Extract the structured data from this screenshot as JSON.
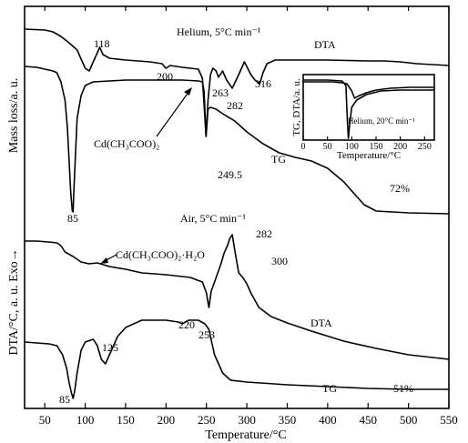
{
  "chart_data": {
    "type": "line",
    "xlabel": "Temperature/°C",
    "xlim": [
      25,
      550
    ],
    "xticks": [
      50,
      100,
      150,
      200,
      250,
      300,
      350,
      400,
      450,
      500,
      550
    ],
    "ylabel_top": "Mass loss/a. u.",
    "ylabel_bottom": "DTA/°C, a. u. Exo→",
    "panels": [
      {
        "title": "Helium, 5°C min⁻¹",
        "series": [
          {
            "name": "DTA",
            "points": [
              [
                25,
                32
              ],
              [
                50,
                33
              ],
              [
                60,
                35
              ],
              [
                70,
                40
              ],
              [
                80,
                47
              ],
              [
                90,
                55
              ],
              [
                95,
                65
              ],
              [
                100,
                75
              ],
              [
                105,
                78
              ],
              [
                110,
                68
              ],
              [
                115,
                58
              ],
              [
                118,
                52
              ],
              [
                122,
                60
              ],
              [
                130,
                64
              ],
              [
                150,
                66
              ],
              [
                180,
                68
              ],
              [
                195,
                70
              ],
              [
                200,
                75
              ],
              [
                205,
                72
              ],
              [
                220,
                74
              ],
              [
                240,
                76
              ],
              [
                245,
                86
              ],
              [
                249.5,
                150
              ],
              [
                252,
                110
              ],
              [
                255,
                82
              ],
              [
                258,
                75
              ],
              [
                262,
                78
              ],
              [
                265,
                85
              ],
              [
                270,
                78
              ],
              [
                275,
                88
              ],
              [
                282,
                97
              ],
              [
                290,
                82
              ],
              [
                297,
                68
              ],
              [
                305,
                82
              ],
              [
                310,
                88
              ],
              [
                316,
                92
              ],
              [
                320,
                80
              ],
              [
                325,
                70
              ],
              [
                335,
                66
              ],
              [
                360,
                66
              ],
              [
                400,
                66
              ],
              [
                450,
                67
              ],
              [
                470,
                67
              ],
              [
                490,
                68
              ],
              [
                510,
                70
              ],
              [
                550,
                72
              ]
            ]
          },
          {
            "name": "TG",
            "points": [
              [
                25,
                73
              ],
              [
                40,
                74
              ],
              [
                50,
                76
              ],
              [
                60,
                78
              ],
              [
                65,
                80
              ],
              [
                70,
                90
              ],
              [
                75,
                110
              ],
              [
                78,
                140
              ],
              [
                80,
                175
              ],
              [
                82,
                210
              ],
              [
                84,
                232
              ],
              [
                85,
                233
              ],
              [
                86,
                210
              ],
              [
                88,
                170
              ],
              [
                90,
                130
              ],
              [
                95,
                105
              ],
              [
                100,
                94
              ],
              [
                110,
                90
              ],
              [
                130,
                89
              ],
              [
                150,
                88
              ],
              [
                200,
                88
              ],
              [
                220,
                88
              ],
              [
                240,
                89
              ],
              [
                245,
                90
              ],
              [
                247,
                100
              ],
              [
                249.5,
                150
              ],
              [
                252,
                120
              ],
              [
                255,
                118
              ],
              [
                262,
                120
              ],
              [
                270,
                125
              ],
              [
                285,
                133
              ],
              [
                300,
                145
              ],
              [
                320,
                158
              ],
              [
                340,
                168
              ],
              [
                360,
                173
              ],
              [
                380,
                177
              ],
              [
                400,
                185
              ],
              [
                420,
                200
              ],
              [
                435,
                215
              ],
              [
                445,
                225
              ],
              [
                460,
                232
              ],
              [
                480,
                233
              ],
              [
                500,
                234
              ],
              [
                550,
                235
              ]
            ]
          }
        ],
        "annotations": [
          {
            "text": "118",
            "x": 118
          },
          {
            "text": "200",
            "x": 200
          },
          {
            "text": "263",
            "x": 263
          },
          {
            "text": "282",
            "x": 282
          },
          {
            "text": "316",
            "x": 316
          },
          {
            "text": "249.5",
            "x": 249.5
          },
          {
            "text": "85",
            "x": 85
          },
          {
            "text": "72%"
          },
          {
            "text": "Cd(CH₃COO)₂"
          }
        ],
        "inset": {
          "title": "Helium, 20°C min⁻¹",
          "xlabel": "Temperature/°C",
          "ylabel": "TG, DTA/a. u.",
          "xlim": [
            0,
            270
          ],
          "xticks": [
            0,
            50,
            100,
            150,
            200,
            250
          ],
          "series": [
            {
              "name": "TG",
              "points": [
                [
                  0,
                  6
                ],
                [
                  50,
                  6
                ],
                [
                  80,
                  7
                ],
                [
                  88,
                  12
                ],
                [
                  91,
                  50
                ],
                [
                  93,
                  70
                ],
                [
                  95,
                  58
                ],
                [
                  100,
                  36
                ],
                [
                  110,
                  28
                ],
                [
                  130,
                  22
                ],
                [
                  160,
                  18
                ],
                [
                  200,
                  17
                ],
                [
                  250,
                  17
                ],
                [
                  270,
                  17
                ]
              ]
            },
            {
              "name": "DTA",
              "points": [
                [
                  0,
                  8
                ],
                [
                  60,
                  8
                ],
                [
                  80,
                  9
                ],
                [
                  90,
                  10
                ],
                [
                  100,
                  18
                ],
                [
                  106,
                  26
                ],
                [
                  112,
                  24
                ],
                [
                  130,
                  20
                ],
                [
                  150,
                  17
                ],
                [
                  180,
                  15
                ],
                [
                  220,
                  14
                ],
                [
                  250,
                  14
                ],
                [
                  270,
                  14
                ]
              ]
            }
          ]
        }
      },
      {
        "title": "Air, 5°C min⁻¹",
        "series": [
          {
            "name": "DTA",
            "points": [
              [
                25,
                265
              ],
              [
                40,
                265
              ],
              [
                55,
                266
              ],
              [
                65,
                267
              ],
              [
                70,
                270
              ],
              [
                75,
                277
              ],
              [
                85,
                282
              ],
              [
                95,
                288
              ],
              [
                105,
                290
              ],
              [
                115,
                289
              ],
              [
                130,
                293
              ],
              [
                150,
                296
              ],
              [
                170,
                300
              ],
              [
                200,
                302
              ],
              [
                230,
                305
              ],
              [
                245,
                310
              ],
              [
                250,
                322
              ],
              [
                253,
                338
              ],
              [
                256,
                320
              ],
              [
                262,
                305
              ],
              [
                268,
                290
              ],
              [
                272,
                278
              ],
              [
                276,
                270
              ],
              [
                279,
                262
              ],
              [
                282,
                258
              ],
              [
                285,
                275
              ],
              [
                290,
                300
              ],
              [
                295,
                305
              ],
              [
                300,
                312
              ],
              [
                305,
                322
              ],
              [
                315,
                338
              ],
              [
                330,
                348
              ],
              [
                350,
                355
              ],
              [
                380,
                364
              ],
              [
                420,
                375
              ],
              [
                460,
                383
              ],
              [
                500,
                390
              ],
              [
                550,
                395
              ]
            ]
          },
          {
            "name": "TG",
            "points": [
              [
                25,
                376
              ],
              [
                40,
                377
              ],
              [
                55,
                378
              ],
              [
                65,
                380
              ],
              [
                72,
                390
              ],
              [
                77,
                405
              ],
              [
                80,
                420
              ],
              [
                83,
                432
              ],
              [
                85,
                438
              ],
              [
                87,
                430
              ],
              [
                90,
                410
              ],
              [
                95,
                385
              ],
              [
                100,
                376
              ],
              [
                110,
                373
              ],
              [
                115,
                380
              ],
              [
                120,
                395
              ],
              [
                125,
                400
              ],
              [
                130,
                390
              ],
              [
                140,
                370
              ],
              [
                150,
                360
              ],
              [
                170,
                352
              ],
              [
                200,
                352
              ],
              [
                215,
                354
              ],
              [
                220,
                356
              ],
              [
                228,
                352
              ],
              [
                240,
                352
              ],
              [
                248,
                356
              ],
              [
                253,
                362
              ],
              [
                260,
                390
              ],
              [
                270,
                410
              ],
              [
                280,
                418
              ],
              [
                300,
                420
              ],
              [
                350,
                423
              ],
              [
                400,
                425
              ],
              [
                450,
                427
              ],
              [
                500,
                428
              ],
              [
                550,
                428
              ]
            ]
          }
        ],
        "annotations": [
          {
            "text": "282",
            "x": 282
          },
          {
            "text": "300",
            "x": 300
          },
          {
            "text": "220",
            "x": 220
          },
          {
            "text": "253",
            "x": 253
          },
          {
            "text": "125",
            "x": 125
          },
          {
            "text": "85",
            "x": 85
          },
          {
            "text": "51%"
          },
          {
            "text": "Cd(CH₃COO)₂·H₂O"
          }
        ]
      }
    ]
  },
  "labels": {
    "top_title": "Helium, 5°C min⁻¹",
    "top_dta": "DTA",
    "top_tg": "TG",
    "top_compound": "Cd(CH₃COO)₂",
    "top_pct": "72%",
    "bottom_title": "Air, 5°C min⁻¹",
    "bottom_dta": "DTA",
    "bottom_tg": "TG",
    "bottom_compound": "Cd(CH₃COO)₂·H₂O",
    "bottom_pct": "51%",
    "inset_title": "Helium, 20°C min⁻¹",
    "inset_xlabel": "Temperature/°C",
    "inset_ylabel": "TG, DTA/a. u."
  }
}
